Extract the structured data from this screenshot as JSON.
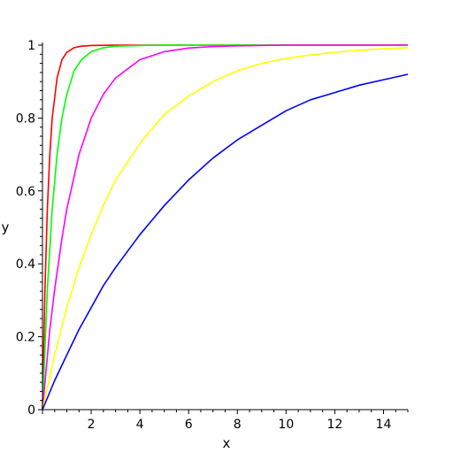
{
  "chart_data": {
    "type": "line",
    "xlabel": "x",
    "ylabel": "y",
    "xlim": [
      0,
      15
    ],
    "ylim": [
      0,
      1
    ],
    "x_ticks": [
      2,
      4,
      6,
      8,
      10,
      12,
      14
    ],
    "x_tick_labels": [
      "2",
      "4",
      "6",
      "8",
      "10",
      "12",
      "14"
    ],
    "y_ticks": [
      0,
      0.2,
      0.4,
      0.6,
      0.8,
      1
    ],
    "y_tick_labels": [
      "0",
      "0.2",
      "0.4",
      "0.6",
      "0.8",
      "1"
    ],
    "grid": false,
    "legend": "none",
    "series": [
      {
        "color": "#ff0000",
        "points": [
          [
            0,
            0
          ],
          [
            0.1,
            0.33
          ],
          [
            0.2,
            0.55
          ],
          [
            0.3,
            0.7
          ],
          [
            0.4,
            0.8
          ],
          [
            0.6,
            0.91
          ],
          [
            0.8,
            0.96
          ],
          [
            1.0,
            0.98
          ],
          [
            1.3,
            0.993
          ],
          [
            1.6,
            0.997
          ],
          [
            2.0,
            0.999
          ],
          [
            3,
            1
          ],
          [
            15,
            1
          ]
        ]
      },
      {
        "color": "#00ff00",
        "points": [
          [
            0,
            0
          ],
          [
            0.2,
            0.33
          ],
          [
            0.4,
            0.55
          ],
          [
            0.6,
            0.7
          ],
          [
            0.8,
            0.8
          ],
          [
            1.0,
            0.865
          ],
          [
            1.3,
            0.93
          ],
          [
            1.6,
            0.96
          ],
          [
            2.0,
            0.982
          ],
          [
            2.5,
            0.993
          ],
          [
            3.0,
            0.997
          ],
          [
            4,
            0.999
          ],
          [
            5,
            1
          ],
          [
            15,
            1
          ]
        ]
      },
      {
        "color": "#ff00ff",
        "points": [
          [
            0,
            0
          ],
          [
            0.3,
            0.22
          ],
          [
            0.5,
            0.33
          ],
          [
            0.8,
            0.47
          ],
          [
            1.0,
            0.55
          ],
          [
            1.5,
            0.7
          ],
          [
            2.0,
            0.8
          ],
          [
            2.5,
            0.865
          ],
          [
            3.0,
            0.91
          ],
          [
            4.0,
            0.96
          ],
          [
            5.0,
            0.982
          ],
          [
            6.0,
            0.992
          ],
          [
            7.0,
            0.996
          ],
          [
            8.0,
            0.998
          ],
          [
            10,
            1
          ],
          [
            15,
            1
          ]
        ]
      },
      {
        "color": "#ffff00",
        "points": [
          [
            0,
            0
          ],
          [
            0.5,
            0.15
          ],
          [
            1,
            0.28
          ],
          [
            1.5,
            0.39
          ],
          [
            2,
            0.48
          ],
          [
            2.5,
            0.56
          ],
          [
            3,
            0.63
          ],
          [
            4,
            0.73
          ],
          [
            5,
            0.81
          ],
          [
            6,
            0.86
          ],
          [
            7,
            0.9
          ],
          [
            8,
            0.93
          ],
          [
            9,
            0.95
          ],
          [
            10,
            0.963
          ],
          [
            11,
            0.973
          ],
          [
            12,
            0.98
          ],
          [
            13,
            0.986
          ],
          [
            14,
            0.99
          ],
          [
            15,
            0.993
          ]
        ]
      },
      {
        "color": "#0000ff",
        "points": [
          [
            0,
            0
          ],
          [
            0.5,
            0.08
          ],
          [
            1,
            0.15
          ],
          [
            1.5,
            0.22
          ],
          [
            2,
            0.28
          ],
          [
            2.5,
            0.34
          ],
          [
            3,
            0.39
          ],
          [
            4,
            0.48
          ],
          [
            5,
            0.56
          ],
          [
            6,
            0.63
          ],
          [
            7,
            0.69
          ],
          [
            8,
            0.74
          ],
          [
            9,
            0.78
          ],
          [
            10,
            0.82
          ],
          [
            11,
            0.85
          ],
          [
            12,
            0.87
          ],
          [
            13,
            0.89
          ],
          [
            14,
            0.905
          ],
          [
            15,
            0.92
          ]
        ]
      }
    ]
  }
}
